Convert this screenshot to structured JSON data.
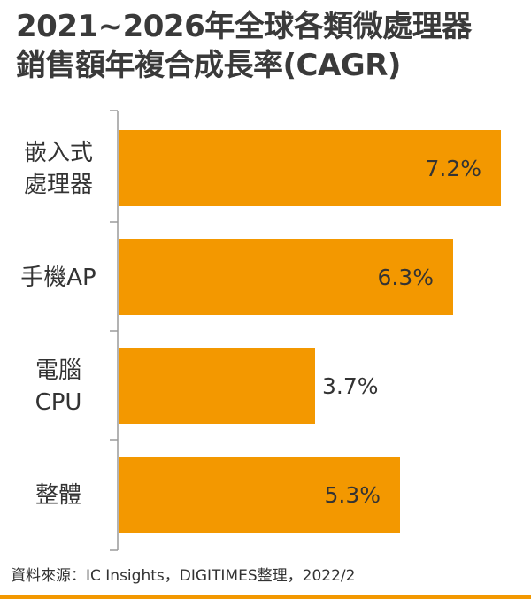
{
  "chart_data": {
    "type": "bar",
    "orientation": "horizontal",
    "title_lines": [
      "2021~2026年全球各類微處理器",
      "銷售額年複合成長率(CAGR)"
    ],
    "categories": [
      [
        "嵌入式",
        "處理器"
      ],
      [
        "手機AP"
      ],
      [
        "電腦",
        "CPU"
      ],
      [
        "整體"
      ]
    ],
    "values": [
      7.2,
      6.3,
      3.7,
      5.3
    ],
    "value_labels": [
      "7.2%",
      "6.3%",
      "3.7%",
      "5.3%"
    ],
    "xlim": [
      0,
      8
    ],
    "grid": false,
    "bar_color": "#f39800"
  },
  "source": "資料來源：IC Insights，DIGITIMES整理，2022/2"
}
